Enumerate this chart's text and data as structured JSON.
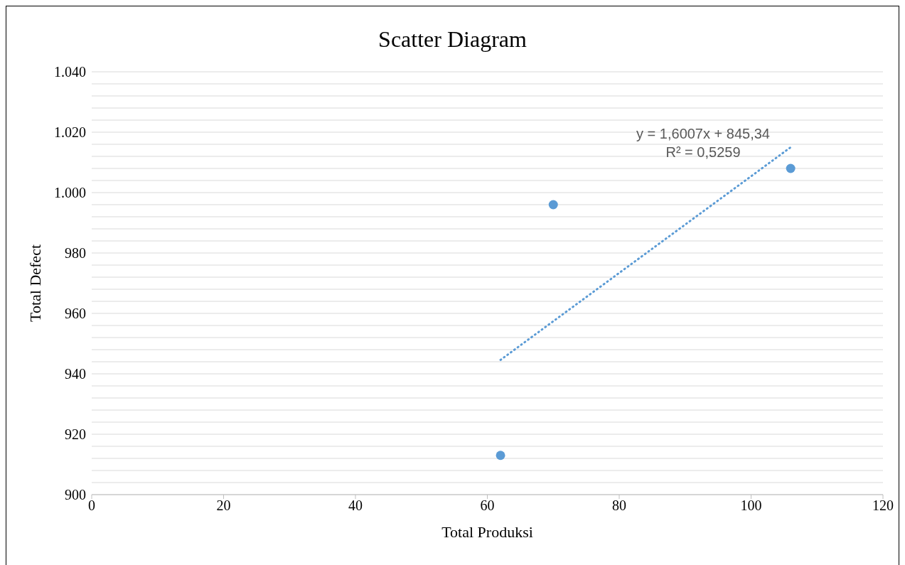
{
  "chart_data": {
    "type": "scatter",
    "title": "Scatter Diagram",
    "xlabel": "Total Produksi",
    "ylabel": "Total Defect",
    "xlim": [
      0,
      120
    ],
    "xticks": [
      0,
      20,
      40,
      60,
      80,
      100,
      120
    ],
    "ylim": [
      900,
      1040
    ],
    "yticks": [
      {
        "value": 900,
        "label": "900"
      },
      {
        "value": 904,
        "label": null
      },
      {
        "value": 908,
        "label": null
      },
      {
        "value": 912,
        "label": null
      },
      {
        "value": 916,
        "label": null
      },
      {
        "value": 920,
        "label": "920"
      },
      {
        "value": 924,
        "label": null
      },
      {
        "value": 928,
        "label": null
      },
      {
        "value": 932,
        "label": null
      },
      {
        "value": 936,
        "label": null
      },
      {
        "value": 940,
        "label": "940"
      },
      {
        "value": 944,
        "label": null
      },
      {
        "value": 948,
        "label": null
      },
      {
        "value": 952,
        "label": null
      },
      {
        "value": 956,
        "label": null
      },
      {
        "value": 960,
        "label": "960"
      },
      {
        "value": 964,
        "label": null
      },
      {
        "value": 968,
        "label": null
      },
      {
        "value": 972,
        "label": null
      },
      {
        "value": 976,
        "label": null
      },
      {
        "value": 980,
        "label": "980"
      },
      {
        "value": 984,
        "label": null
      },
      {
        "value": 988,
        "label": null
      },
      {
        "value": 992,
        "label": null
      },
      {
        "value": 996,
        "label": null
      },
      {
        "value": 1000,
        "label": "1.000"
      },
      {
        "value": 1004,
        "label": null
      },
      {
        "value": 1008,
        "label": null
      },
      {
        "value": 1012,
        "label": null
      },
      {
        "value": 1016,
        "label": null
      },
      {
        "value": 1020,
        "label": "1.020"
      },
      {
        "value": 1024,
        "label": null
      },
      {
        "value": 1028,
        "label": null
      },
      {
        "value": 1032,
        "label": null
      },
      {
        "value": 1036,
        "label": null
      },
      {
        "value": 1040,
        "label": "1.040"
      }
    ],
    "grid": "y",
    "series": [
      {
        "color": "#5b9bd5",
        "marker": "circle",
        "x": [
          62,
          70,
          106
        ],
        "values": [
          913,
          996,
          1008
        ]
      },
      {
        "type": "line",
        "color": "#5b9bd5",
        "marker": "none",
        "line_style": "dotted",
        "x": [
          62,
          106
        ],
        "values": [
          944.6,
          1015
        ]
      }
    ],
    "annotations": [
      "y = 1,6007x + 845,34",
      "R² = 0,5259"
    ]
  }
}
